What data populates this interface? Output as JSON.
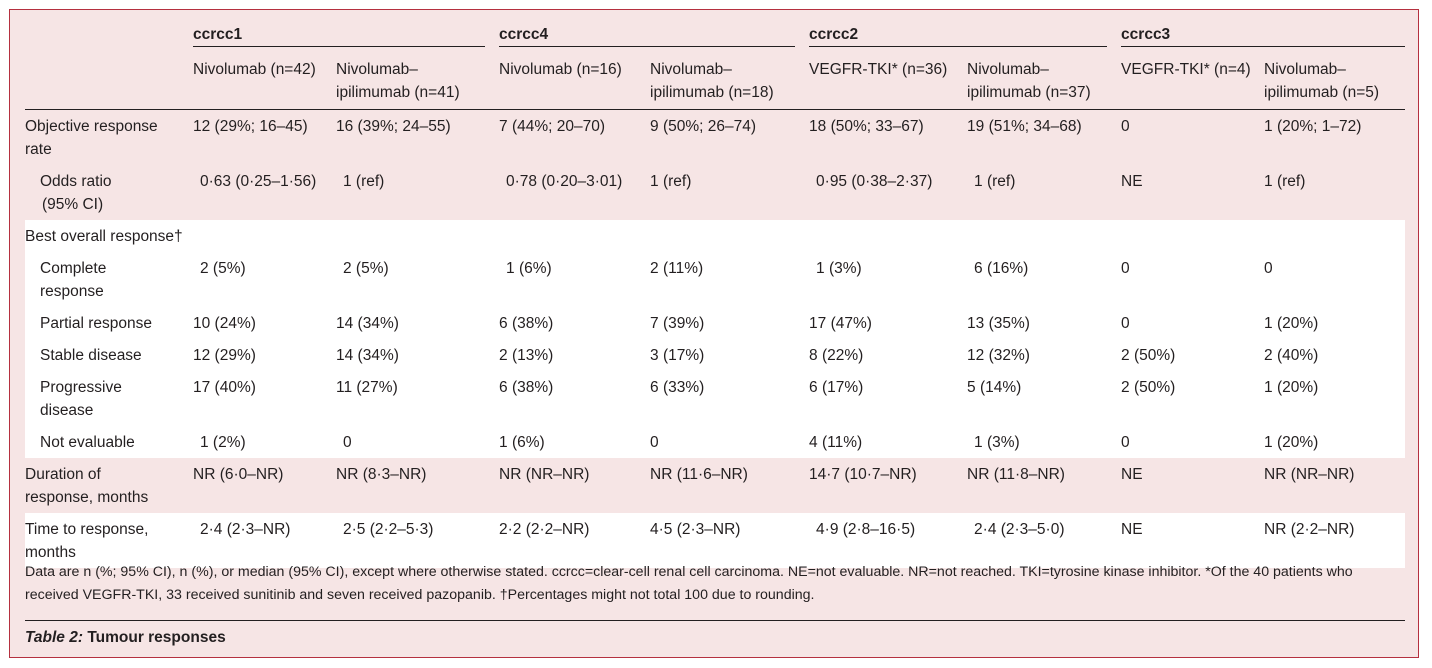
{
  "groups": [
    "ccrcc1",
    "ccrcc4",
    "ccrcc2",
    "ccrcc3"
  ],
  "columns": [
    [
      "Nivolumab (n=42)",
      ""
    ],
    [
      "Nivolumab–",
      "ipilimumab (n=41)"
    ],
    [
      "Nivolumab (n=16)",
      ""
    ],
    [
      "Nivolumab–",
      "ipilimumab (n=18)"
    ],
    [
      "VEGFR-TKI* (n=36)",
      ""
    ],
    [
      "Nivolumab–",
      "ipilimumab (n=37)"
    ],
    [
      "VEGFR-TKI* (n=4)",
      ""
    ],
    [
      "Nivolumab–",
      "ipilimumab (n=5)"
    ]
  ],
  "rows": [
    {
      "label": [
        "Objective response",
        "rate"
      ],
      "cells": [
        "12 (29%; 16–45)",
        "16 (39%; 24–55)",
        "7 (44%; 20–70)",
        "9 (50%; 26–74)",
        "18 (50%; 33–67)",
        "19 (51%; 34–68)",
        "0",
        "1 (20%; 1–72)"
      ]
    },
    {
      "label": [
        "Odds ratio",
        "(95% CI)"
      ],
      "cells": [
        "0·63 (0·25–1·56)",
        "1 (ref)",
        "0·78 (0·20–3·01)",
        "1 (ref)",
        "0·95 (0·38–2·37)",
        "1 (ref)",
        "NE",
        "1 (ref)"
      ]
    },
    {
      "label": [
        "Best overall response†",
        ""
      ],
      "cells": [
        "",
        "",
        "",
        "",
        "",
        "",
        "",
        ""
      ]
    },
    {
      "label": [
        "Complete",
        "response"
      ],
      "cells": [
        "2 (5%)",
        "2 (5%)",
        "1 (6%)",
        "2 (11%)",
        "1 (3%)",
        "6 (16%)",
        "0",
        "0"
      ]
    },
    {
      "label": [
        "Partial response",
        ""
      ],
      "cells": [
        "10 (24%)",
        "14 (34%)",
        "6 (38%)",
        "7 (39%)",
        "17 (47%)",
        "13 (35%)",
        "0",
        "1 (20%)"
      ]
    },
    {
      "label": [
        "Stable disease",
        ""
      ],
      "cells": [
        "12 (29%)",
        "14 (34%)",
        "2 (13%)",
        "3 (17%)",
        "8 (22%)",
        "12 (32%)",
        "2 (50%)",
        "2 (40%)"
      ]
    },
    {
      "label": [
        "Progressive",
        "disease"
      ],
      "cells": [
        "17 (40%)",
        "11 (27%)",
        "6 (38%)",
        "6 (33%)",
        "6 (17%)",
        "5 (14%)",
        "2 (50%)",
        "1 (20%)"
      ]
    },
    {
      "label": [
        "Not evaluable",
        ""
      ],
      "cells": [
        "1 (2%)",
        "0",
        "1 (6%)",
        "0",
        "4 (11%)",
        "1 (3%)",
        "0",
        "1 (20%)"
      ]
    },
    {
      "label": [
        "Duration of",
        "response, months"
      ],
      "cells": [
        "NR (6·0–NR)",
        "NR (8·3–NR)",
        "NR (NR–NR)",
        "NR (11·6–NR)",
        "14·7 (10·7–NR)",
        "NR (11·8–NR)",
        "NE",
        "NR (NR–NR)"
      ]
    },
    {
      "label": [
        "Time to response,",
        "months"
      ],
      "cells": [
        "2·4 (2·3–NR)",
        "2·5 (2·2–5·3)",
        "2·2 (2·2–NR)",
        "4·5 (2·3–NR)",
        "4·9 (2·8–16·5)",
        "2·4 (2·3–5·0)",
        "NE",
        "NR (2·2–NR)"
      ]
    }
  ],
  "footnote": [
    "Data are n (%; 95% CI), n (%), or median (95% CI), except where otherwise stated. ccrcc=clear-cell renal cell carcinoma. NE=not evaluable. NR=not reached. TKI=tyrosine kinase inhibitor. *Of the 40 patients who",
    "received VEGFR-TKI, 33 received sunitinib and seven received pazopanib. †Percentages might not total 100 due to rounding."
  ],
  "caption": {
    "label": "Table 2:",
    "title": "Tumour responses"
  },
  "colors": {
    "border": "#b5303f",
    "tint": "#f6e5e5",
    "text": "#231f20"
  }
}
